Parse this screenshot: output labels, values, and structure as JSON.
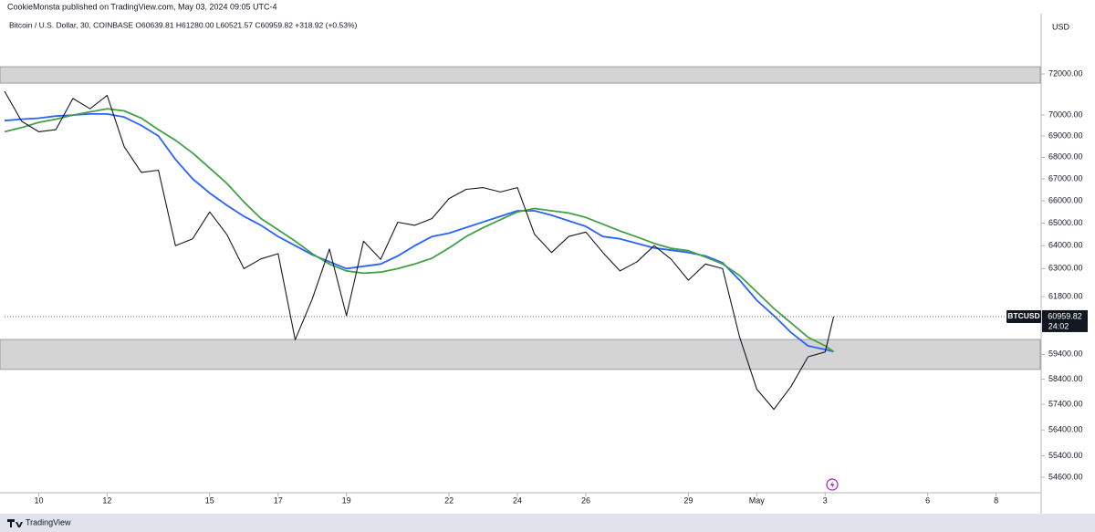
{
  "chart_data": {
    "type": "line",
    "header": "CookieMonsta published on TradingView.com, May 03, 2024 09:05 UTC-4",
    "subtitle": "Bitcoin / U.S. Dollar, 30, COINBASE  O60639.81 H61280.00 L60521.57 C60959.82 +318.92 (+0.53%)",
    "y_unit": "USD",
    "footer": "TradingView",
    "log_scale": true,
    "grid": false,
    "x": [
      "2024-04-09T00:00",
      "2024-04-09T12:00",
      "2024-04-10T00:00",
      "2024-04-10T12:00",
      "2024-04-11T00:00",
      "2024-04-11T12:00",
      "2024-04-12T00:00",
      "2024-04-12T12:00",
      "2024-04-13T00:00",
      "2024-04-13T12:00",
      "2024-04-14T00:00",
      "2024-04-14T12:00",
      "2024-04-15T00:00",
      "2024-04-15T12:00",
      "2024-04-16T00:00",
      "2024-04-16T12:00",
      "2024-04-17T00:00",
      "2024-04-17T12:00",
      "2024-04-18T00:00",
      "2024-04-18T12:00",
      "2024-04-19T00:00",
      "2024-04-19T12:00",
      "2024-04-20T00:00",
      "2024-04-20T12:00",
      "2024-04-21T00:00",
      "2024-04-21T12:00",
      "2024-04-22T00:00",
      "2024-04-22T12:00",
      "2024-04-23T00:00",
      "2024-04-23T12:00",
      "2024-04-24T00:00",
      "2024-04-24T12:00",
      "2024-04-25T00:00",
      "2024-04-25T12:00",
      "2024-04-26T00:00",
      "2024-04-26T12:00",
      "2024-04-27T00:00",
      "2024-04-27T12:00",
      "2024-04-28T00:00",
      "2024-04-28T12:00",
      "2024-04-29T00:00",
      "2024-04-29T12:00",
      "2024-04-30T00:00",
      "2024-04-30T12:00",
      "2024-05-01T00:00",
      "2024-05-01T12:00",
      "2024-05-02T00:00",
      "2024-05-02T12:00",
      "2024-05-03T00:00",
      "2024-05-03T06:00"
    ],
    "series": [
      {
        "name": "BTCUSD",
        "color": "#131722",
        "values": [
          71150,
          69700,
          69200,
          69300,
          70800,
          70300,
          70950,
          68500,
          67300,
          67400,
          64000,
          64300,
          65500,
          64500,
          63000,
          63420,
          63650,
          60000,
          61700,
          63850,
          61000,
          64200,
          63400,
          65040,
          64900,
          65200,
          66100,
          66520,
          66600,
          66400,
          66600,
          64500,
          63700,
          64400,
          64600,
          63700,
          62900,
          63300,
          64000,
          63400,
          62500,
          63200,
          63000,
          60100,
          58000,
          57200,
          58100,
          59300,
          59500,
          60959.82
        ]
      },
      {
        "color": "#2962ff",
        "values": [
          69730,
          69800,
          69850,
          69950,
          70000,
          70050,
          70050,
          69900,
          69500,
          69000,
          67900,
          67000,
          66350,
          65800,
          65300,
          64900,
          64400,
          64000,
          63600,
          63300,
          63000,
          63100,
          63200,
          63550,
          64000,
          64400,
          64550,
          64800,
          65050,
          65300,
          65550,
          65550,
          65350,
          65100,
          64850,
          64400,
          64300,
          64100,
          63900,
          63800,
          63700,
          63550,
          63250,
          62500,
          61650,
          61000,
          60300,
          59750,
          59600,
          59510
        ]
      },
      {
        "color": "#43a047",
        "values": [
          69200,
          69400,
          69650,
          69800,
          70000,
          70150,
          70300,
          70200,
          69850,
          69300,
          68800,
          68200,
          67500,
          66800,
          65950,
          65200,
          64700,
          64200,
          63650,
          63200,
          62900,
          62800,
          62850,
          63000,
          63200,
          63450,
          63900,
          64400,
          64800,
          65150,
          65500,
          65650,
          65550,
          65450,
          65250,
          64950,
          64650,
          64380,
          64100,
          63880,
          63780,
          63500,
          63200,
          62700,
          62000,
          61300,
          60700,
          60100,
          59750,
          59510
        ]
      }
    ],
    "zones": [
      [
        71550,
        72360
      ],
      [
        58790,
        60010
      ]
    ],
    "zone_color": "#d4d4d4",
    "price_label": {
      "value": 60959.82,
      "countdown": "24:02"
    },
    "xlim": [
      "2024-04-09T00:00",
      "2024-05-09T07:00"
    ],
    "xticks": [
      {
        "value": "2024-04-10T00:00",
        "label": "10"
      },
      {
        "value": "2024-04-12T00:00",
        "label": "12"
      },
      {
        "value": "2024-04-15T00:00",
        "label": "15"
      },
      {
        "value": "2024-04-17T00:00",
        "label": "17"
      },
      {
        "value": "2024-04-19T00:00",
        "label": "19"
      },
      {
        "value": "2024-04-22T00:00",
        "label": "22"
      },
      {
        "value": "2024-04-24T00:00",
        "label": "24"
      },
      {
        "value": "2024-04-26T00:00",
        "label": "26"
      },
      {
        "value": "2024-04-29T00:00",
        "label": "29"
      },
      {
        "value": "2024-05-01T00:00",
        "label": "May"
      },
      {
        "value": "2024-05-03T00:00",
        "label": "3"
      },
      {
        "value": "2024-05-06T00:00",
        "label": "6"
      },
      {
        "value": "2024-05-08T00:00",
        "label": "8"
      }
    ],
    "ylim": [
      54020,
      75040
    ],
    "yticks": [
      {
        "value": 72000,
        "label": "72000.00"
      },
      {
        "value": 70000,
        "label": "70000.00"
      },
      {
        "value": 69000,
        "label": "69000.00"
      },
      {
        "value": 68000,
        "label": "68000.00"
      },
      {
        "value": 67000,
        "label": "67000.00"
      },
      {
        "value": 66000,
        "label": "66000.00"
      },
      {
        "value": 65000,
        "label": "65000.00"
      },
      {
        "value": 64000,
        "label": "64000.00"
      },
      {
        "value": 63000,
        "label": "63000.00"
      },
      {
        "value": 61800,
        "label": "61800.00"
      },
      {
        "value": 59400,
        "label": "59400.00"
      },
      {
        "value": 58400,
        "label": "58400.00"
      },
      {
        "value": 57400,
        "label": "57400.00"
      },
      {
        "value": 56400,
        "label": "56400.00"
      },
      {
        "value": 55400,
        "label": "55400.00"
      },
      {
        "value": 54600,
        "label": "54600.00"
      }
    ]
  }
}
